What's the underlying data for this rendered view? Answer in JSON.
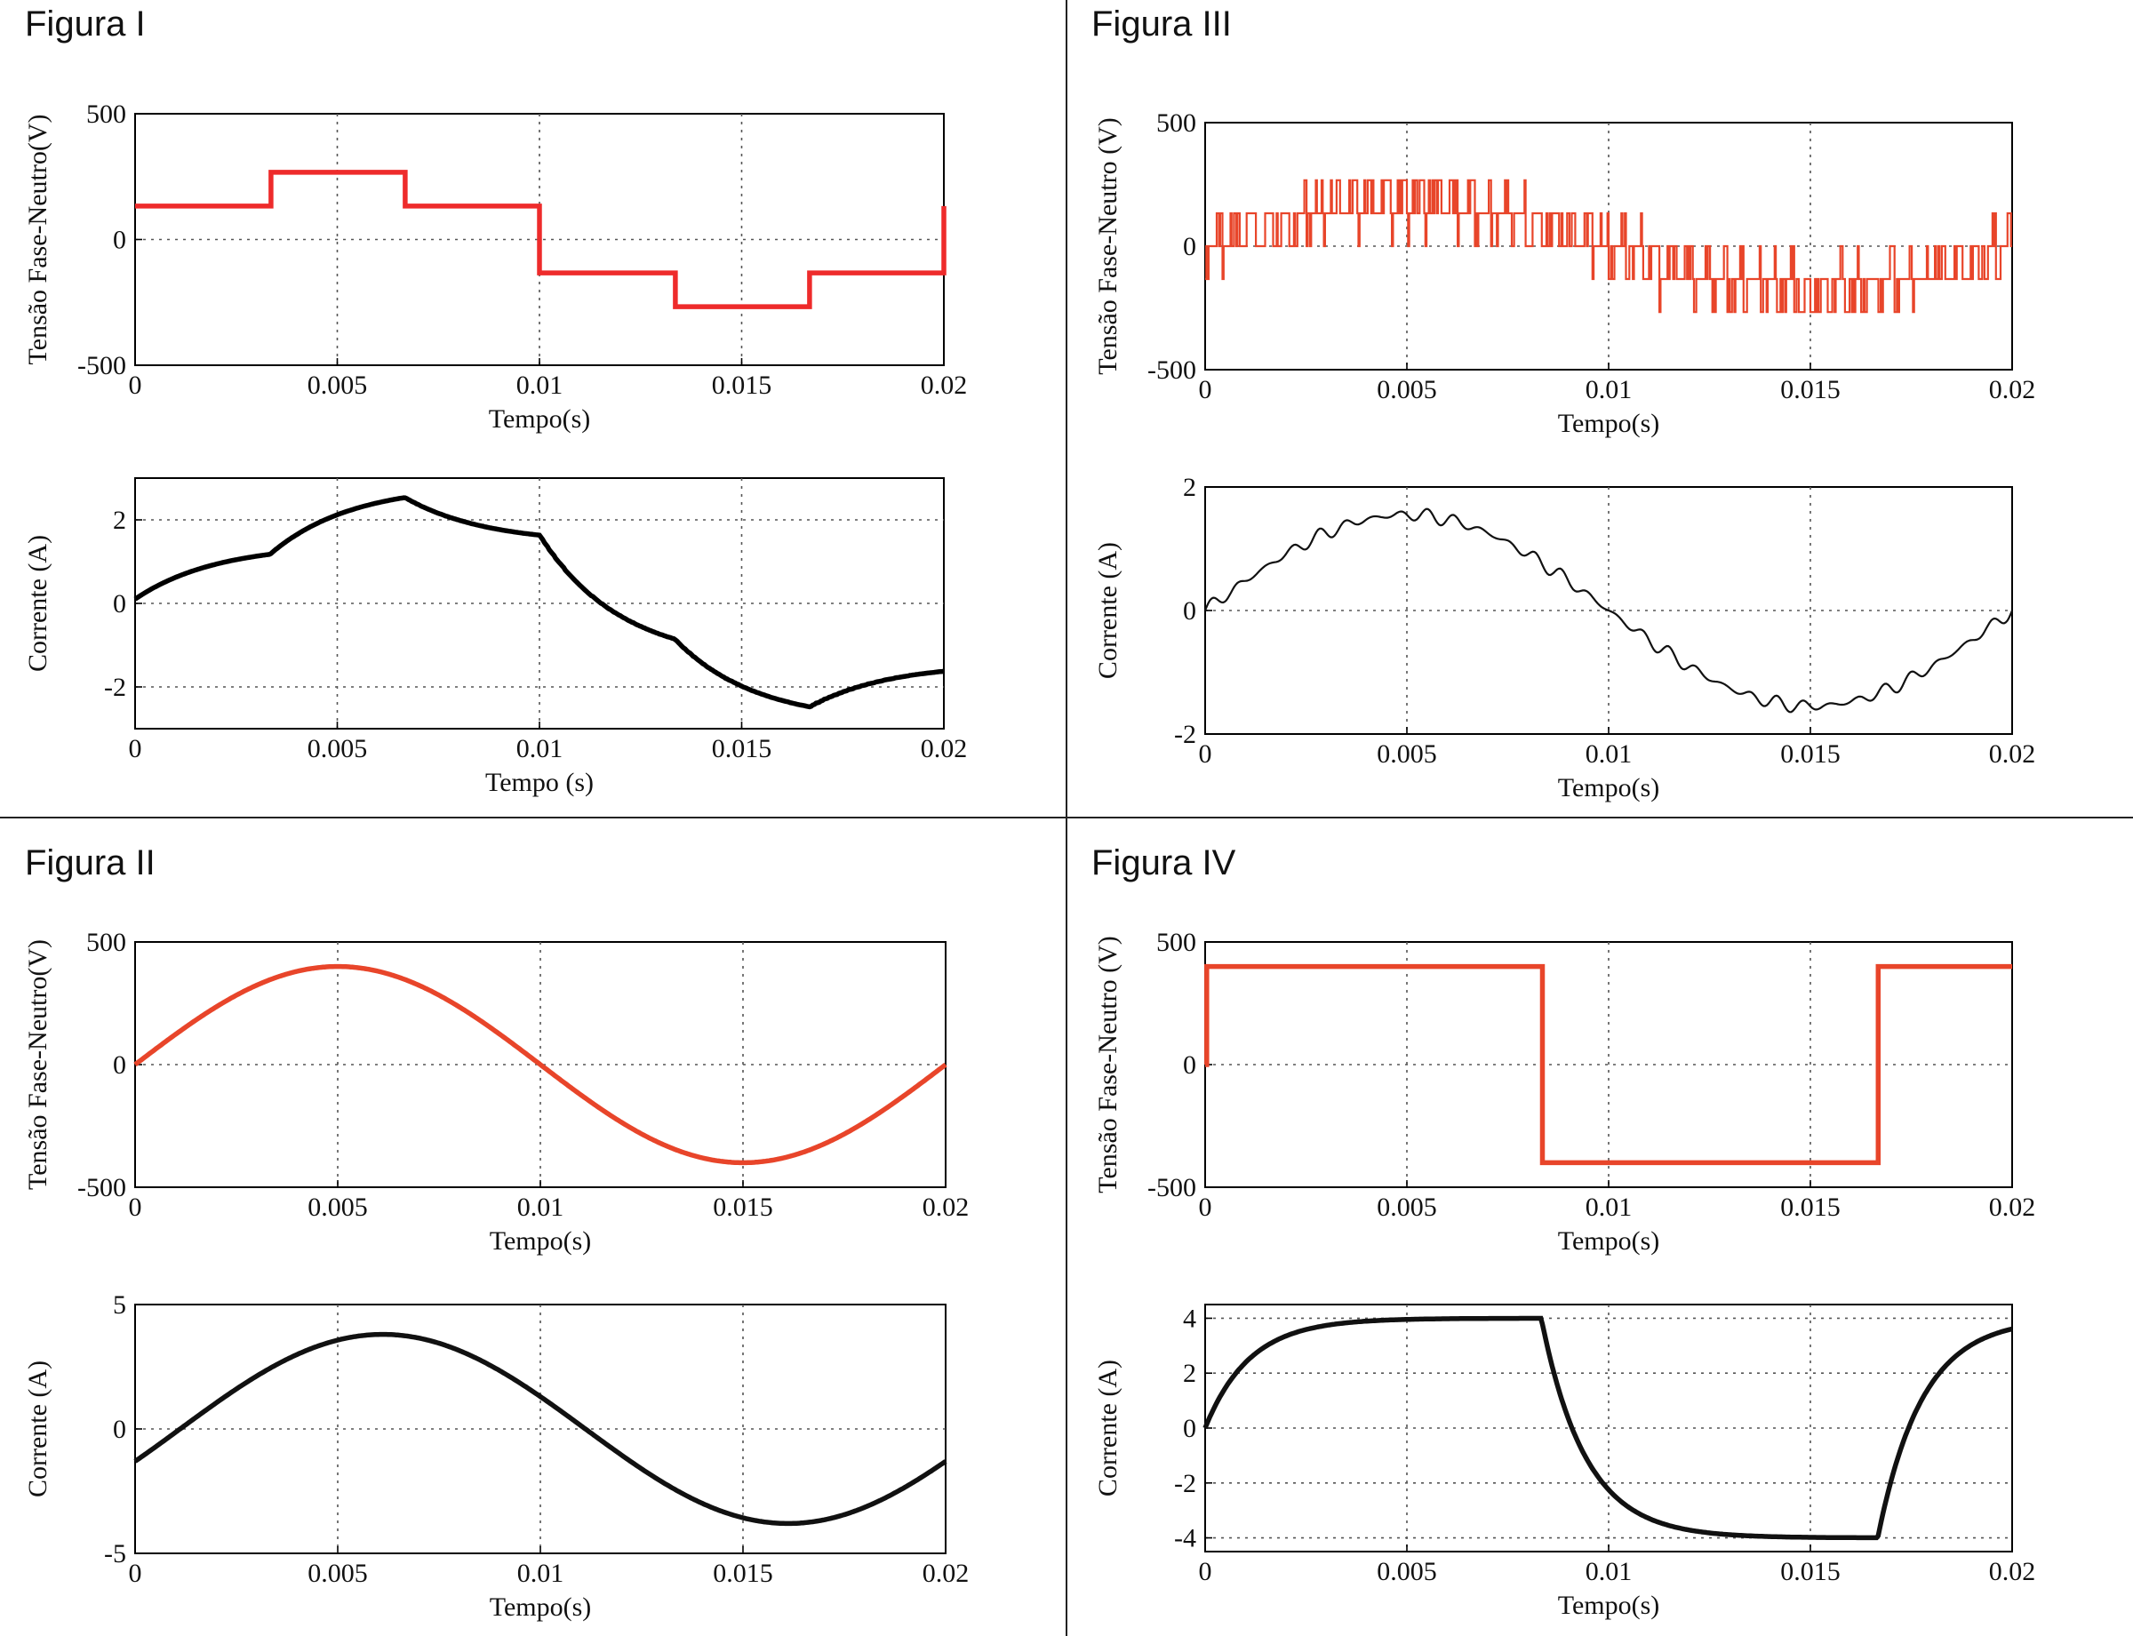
{
  "figures": [
    {
      "title": "Figura I",
      "voltage": {
        "type": "line",
        "ylabel": "Tensão Fase-Neutro(V)",
        "xlabel": "Tempo(s)",
        "xlim": [
          0,
          0.02
        ],
        "ylim": [
          -500,
          500
        ],
        "xticks": [
          "0",
          "0.005",
          "0.01",
          "0.015",
          "0.02"
        ],
        "yticks": [
          "500",
          "0",
          "-500"
        ],
        "ytick_values": [
          500,
          0,
          -500
        ],
        "color": "#ee2b2b",
        "waveform": "six-step",
        "amplitude_high": 267,
        "amplitude_low": 133
      },
      "current": {
        "type": "line",
        "ylabel": "Corrente (A)",
        "xlabel": "Tempo (s)",
        "xlim": [
          0,
          0.02
        ],
        "ylim": [
          -3,
          3
        ],
        "xticks": [
          "0",
          "0.005",
          "0.01",
          "0.015",
          "0.02"
        ],
        "yticks": [
          "2",
          "0",
          "-2"
        ],
        "ytick_values": [
          2,
          0,
          -2
        ],
        "color": "#000000",
        "waveform": "six-step-current",
        "peak": 2.55
      }
    },
    {
      "title": "Figura II",
      "voltage": {
        "type": "line",
        "ylabel": "Tensão Fase-Neutro(V)",
        "xlabel": "Tempo(s)",
        "xlim": [
          0,
          0.02
        ],
        "ylim": [
          -500,
          500
        ],
        "xticks": [
          "0",
          "0.005",
          "0.01",
          "0.015",
          "0.02"
        ],
        "yticks": [
          "500",
          "0",
          "-500"
        ],
        "ytick_values": [
          500,
          0,
          -500
        ],
        "color": "#e8452a",
        "waveform": "sine",
        "amplitude": 400
      },
      "current": {
        "type": "line",
        "ylabel": "Corrente (A)",
        "xlabel": "Tempo(s)",
        "xlim": [
          0,
          0.02
        ],
        "ylim": [
          -5,
          5
        ],
        "xticks": [
          "0",
          "0.005",
          "0.01",
          "0.015",
          "0.02"
        ],
        "yticks": [
          "5",
          "0",
          "-5"
        ],
        "ytick_values": [
          5,
          0,
          -5
        ],
        "color": "#111111",
        "waveform": "sine-lag",
        "amplitude": 3.8,
        "start_value": -1.3
      }
    },
    {
      "title": "Figura III",
      "voltage": {
        "type": "line",
        "ylabel": "Tensão Fase-Neutro (V)",
        "xlabel": "Tempo(s)",
        "xlim": [
          0,
          0.02
        ],
        "ylim": [
          -500,
          500
        ],
        "xticks": [
          "0",
          "0.005",
          "0.01",
          "0.015",
          "0.02"
        ],
        "yticks": [
          "500",
          "0",
          "-500"
        ],
        "ytick_values": [
          500,
          0,
          -500
        ],
        "color": "#e8452a",
        "waveform": "pwm",
        "levels": [
          -267,
          -133,
          0,
          133,
          267
        ]
      },
      "current": {
        "type": "line",
        "ylabel": "Corrente (A)",
        "xlabel": "Tempo(s)",
        "xlim": [
          0,
          0.02
        ],
        "ylim": [
          -2,
          2
        ],
        "xticks": [
          "0",
          "0.005",
          "0.01",
          "0.015",
          "0.02"
        ],
        "yticks": [
          "2",
          "0",
          "-2"
        ],
        "ytick_values": [
          2,
          0,
          -2
        ],
        "color": "#111111",
        "waveform": "sine-ripple",
        "amplitude": 1.55
      }
    },
    {
      "title": "Figura IV",
      "voltage": {
        "type": "line",
        "ylabel": "Tensão Fase-Neutro (V)",
        "xlabel": "Tempo(s)",
        "xlim": [
          0,
          0.02
        ],
        "ylim": [
          -500,
          500
        ],
        "xticks": [
          "0",
          "0.005",
          "0.01",
          "0.015",
          "0.02"
        ],
        "yticks": [
          "500",
          "0",
          "-500"
        ],
        "ytick_values": [
          500,
          0,
          -500
        ],
        "color": "#e8452a",
        "waveform": "square",
        "amplitude": 400
      },
      "current": {
        "type": "line",
        "ylabel": "Corrente (A)",
        "xlabel": "Tempo(s)",
        "xlim": [
          0,
          0.02
        ],
        "ylim": [
          -4.5,
          4.5
        ],
        "xticks": [
          "0",
          "0.005",
          "0.01",
          "0.015",
          "0.02"
        ],
        "yticks": [
          "4",
          "2",
          "0",
          "-2",
          "-4"
        ],
        "ytick_values": [
          4,
          2,
          0,
          -2,
          -4
        ],
        "color": "#111111",
        "waveform": "square-current",
        "amplitude": 4
      }
    }
  ]
}
